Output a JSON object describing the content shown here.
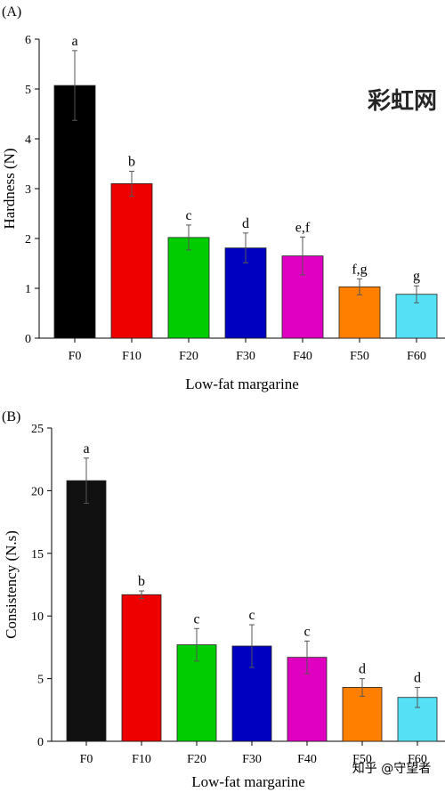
{
  "chart_data": [
    {
      "type": "bar",
      "panel_label": "(A)",
      "categories": [
        "F0",
        "F10",
        "F20",
        "F30",
        "F40",
        "F50",
        "F60"
      ],
      "values": [
        5.07,
        3.1,
        2.02,
        1.81,
        1.65,
        1.03,
        0.88
      ],
      "error": [
        0.7,
        0.25,
        0.25,
        0.3,
        0.38,
        0.16,
        0.17
      ],
      "letters": [
        "a",
        "b",
        "c",
        "d",
        "e,f",
        "f,g",
        "g"
      ],
      "colors": [
        "#000000",
        "#ee0000",
        "#00cc00",
        "#0000c0",
        "#e000c0",
        "#ff8000",
        "#55e0f5"
      ],
      "xlabel": "Low-fat margarine",
      "ylabel": "Hardness (N)",
      "ylim": [
        0,
        6
      ],
      "yticks": [
        0,
        1,
        2,
        3,
        4,
        5,
        6
      ],
      "grid": false
    },
    {
      "type": "bar",
      "panel_label": "(B)",
      "categories": [
        "F0",
        "F10",
        "F20",
        "F30",
        "F40",
        "F50",
        "F60"
      ],
      "values": [
        20.8,
        11.7,
        7.7,
        7.6,
        6.7,
        4.3,
        3.5
      ],
      "error": [
        1.8,
        0.3,
        1.3,
        1.7,
        1.3,
        0.7,
        0.8
      ],
      "letters": [
        "a",
        "b",
        "c",
        "c",
        "c",
        "d",
        "d"
      ],
      "colors": [
        "#111111",
        "#ee0000",
        "#00cc00",
        "#0000c0",
        "#e000c0",
        "#ff8000",
        "#55e0f5"
      ],
      "xlabel": "Low-fat margarine",
      "ylabel": "Consistency (N.s)",
      "ylim": [
        0,
        25
      ],
      "yticks": [
        0,
        5,
        10,
        15,
        20,
        25
      ],
      "grid": false
    }
  ],
  "watermarks": {
    "top_right": "彩虹网",
    "bottom_right": "知乎 @守望者",
    "top_right_color": "#e86a80",
    "bottom_right_color": "#ffffff"
  }
}
